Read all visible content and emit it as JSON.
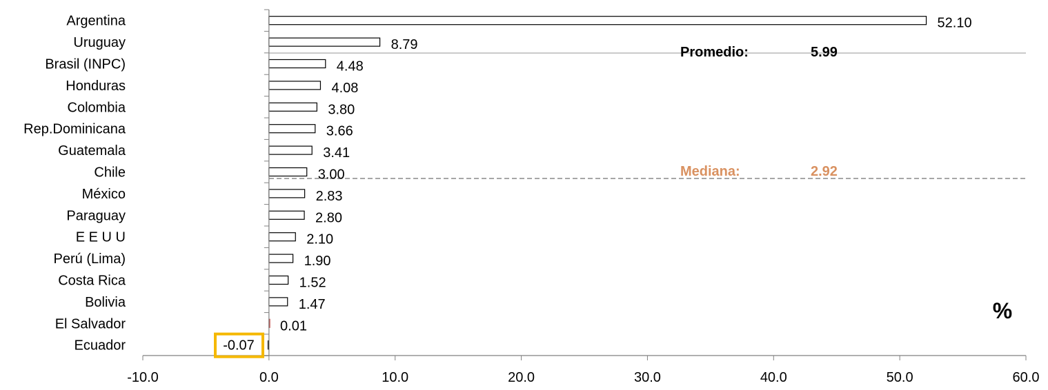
{
  "chart_data": {
    "type": "bar",
    "orientation": "horizontal",
    "categories": [
      "Argentina",
      "Uruguay",
      "Brasil (INPC)",
      "Honduras",
      "Colombia",
      "Rep.Dominicana",
      "Guatemala",
      "Chile",
      "México",
      "Paraguay",
      "E E U U",
      "Perú (Lima)",
      "Costa Rica",
      "Bolivia",
      "El Salvador",
      "Ecuador"
    ],
    "values": [
      52.1,
      8.79,
      4.48,
      4.08,
      3.8,
      3.66,
      3.41,
      3.0,
      2.83,
      2.8,
      2.1,
      1.9,
      1.52,
      1.47,
      0.01,
      -0.07
    ],
    "value_labels": [
      "52.10",
      "8.79",
      "4.48",
      "4.08",
      "3.80",
      "3.66",
      "3.41",
      "3.00",
      "2.83",
      "2.80",
      "2.10",
      "1.90",
      "1.52",
      "1.47",
      "0.01",
      "-0.07"
    ],
    "xlim": [
      -10,
      60
    ],
    "xticks": [
      -10,
      0,
      10,
      20,
      30,
      40,
      50,
      60
    ],
    "xtick_labels": [
      "-10.0",
      "0.0",
      "10.0",
      "20.0",
      "30.0",
      "40.0",
      "50.0",
      "60.0"
    ],
    "grid": false,
    "unit_label": "%",
    "highlighted_category": "Ecuador",
    "reference_lines": [
      {
        "label": "Promedio:",
        "value_text": "5.99",
        "value": 5.99,
        "style": "solid",
        "color": "#b8b8b8",
        "text_color": "#000000"
      },
      {
        "label": "Mediana:",
        "value_text": "2.92",
        "value": 2.92,
        "style": "dashed",
        "color": "#a6a6a6",
        "text_color": "#d99160"
      }
    ],
    "colors": {
      "bar_fill": "#ffffff",
      "bar_stroke": "#000000",
      "small_bar_stroke": "#c0504d",
      "highlight_box": "#f5b800",
      "axis": "#808080"
    }
  }
}
